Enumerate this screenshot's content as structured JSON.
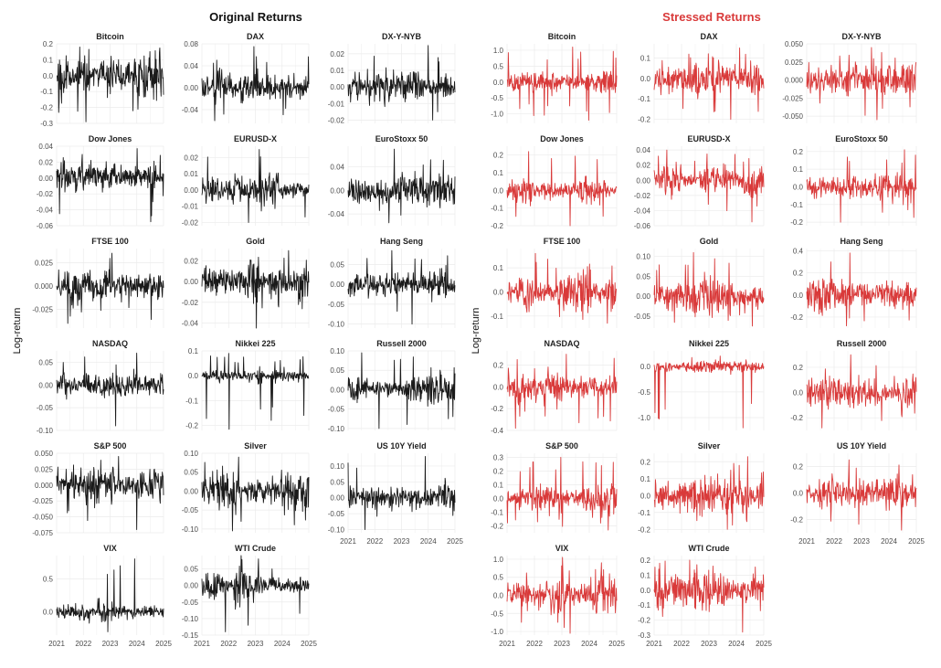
{
  "ylabel": "Log-return",
  "x_ticks": [
    "2021",
    "2022",
    "2023",
    "2024",
    "2025"
  ],
  "colors": {
    "original": "#1a1a1a",
    "stressed": "#d93a3a",
    "grid": "#ebebeb",
    "axis_text": "#4d4d4d",
    "title_text": "#222222"
  },
  "chart_data": [
    {
      "type": "line",
      "title": "Original Returns",
      "color_key": "original",
      "panels": [
        {
          "name": "Bitcoin",
          "yticks": [
            "0.2",
            "0.1",
            "0.0",
            "-0.1",
            "-0.2",
            "-0.3"
          ],
          "ylim": [
            -0.3,
            0.2
          ],
          "amp": 0.05,
          "up": 0.18,
          "down": -0.29
        },
        {
          "name": "DAX",
          "yticks": [
            "0.08",
            "0.04",
            "0.00",
            "-0.04"
          ],
          "ylim": [
            -0.065,
            0.08
          ],
          "amp": 0.011,
          "up": 0.075,
          "down": -0.06
        },
        {
          "name": "DX-Y-NYB",
          "yticks": [
            "0.02",
            "0.01",
            "0.00",
            "-0.01",
            "-0.02"
          ],
          "ylim": [
            -0.022,
            0.026
          ],
          "amp": 0.006,
          "up": 0.025,
          "down": -0.02
        },
        {
          "name": "Dow Jones",
          "yticks": [
            "0.04",
            "0.02",
            "0.00",
            "-0.02",
            "-0.04",
            "-0.06"
          ],
          "ylim": [
            -0.06,
            0.04
          ],
          "amp": 0.01,
          "up": 0.037,
          "down": -0.055
        },
        {
          "name": "EURUSD-X",
          "yticks": [
            "0.02",
            "0.01",
            "0.00",
            "-0.01",
            "-0.02"
          ],
          "ylim": [
            -0.022,
            0.027
          ],
          "amp": 0.005,
          "up": 0.025,
          "down": -0.02
        },
        {
          "name": "EuroStoxx 50",
          "yticks": [
            "0.04",
            "0.00",
            "-0.04"
          ],
          "ylim": [
            -0.06,
            0.075
          ],
          "amp": 0.011,
          "up": 0.07,
          "down": -0.055
        },
        {
          "name": "FTSE 100",
          "yticks": [
            "0.025",
            "0.000",
            "-0.025"
          ],
          "ylim": [
            -0.045,
            0.04
          ],
          "amp": 0.009,
          "up": 0.035,
          "down": -0.04
        },
        {
          "name": "Gold",
          "yticks": [
            "0.02",
            "0.00",
            "-0.02",
            "-0.04"
          ],
          "ylim": [
            -0.045,
            0.032
          ],
          "amp": 0.009,
          "up": 0.03,
          "down": -0.045
        },
        {
          "name": "Hang Seng",
          "yticks": [
            "0.05",
            "0.00",
            "-0.05",
            "-0.10"
          ],
          "ylim": [
            -0.11,
            0.09
          ],
          "amp": 0.017,
          "up": 0.085,
          "down": -0.1
        },
        {
          "name": "NASDAQ",
          "yticks": [
            "0.05",
            "0.00",
            "-0.05",
            "-0.10"
          ],
          "ylim": [
            -0.1,
            0.075
          ],
          "amp": 0.014,
          "up": 0.07,
          "down": -0.09
        },
        {
          "name": "Nikkei 225",
          "yticks": [
            "0.1",
            "0.0",
            "-0.1",
            "-0.2"
          ],
          "ylim": [
            -0.22,
            0.1
          ],
          "amp": 0.011,
          "up": 0.09,
          "down": -0.215
        },
        {
          "name": "Russell 2000",
          "yticks": [
            "0.10",
            "0.05",
            "0.00",
            "-0.05",
            "-0.10"
          ],
          "ylim": [
            -0.105,
            0.1
          ],
          "amp": 0.017,
          "up": 0.095,
          "down": -0.1
        },
        {
          "name": "S&P 500",
          "yticks": [
            "0.050",
            "0.025",
            "0.000",
            "-0.025",
            "-0.050",
            "-0.075"
          ],
          "ylim": [
            -0.075,
            0.05
          ],
          "amp": 0.012,
          "up": 0.045,
          "down": -0.07
        },
        {
          "name": "Silver",
          "yticks": [
            "0.10",
            "0.05",
            "0.00",
            "-0.05",
            "-0.10"
          ],
          "ylim": [
            -0.11,
            0.1
          ],
          "amp": 0.02,
          "up": 0.09,
          "down": -0.105
        },
        {
          "name": "US 10Y Yield",
          "yticks": [
            "0.10",
            "0.05",
            "0.00",
            "-0.05",
            "-0.10"
          ],
          "ylim": [
            -0.11,
            0.14
          ],
          "amp": 0.02,
          "up": 0.13,
          "down": -0.1
        },
        {
          "name": "VIX",
          "yticks": [
            "0.5",
            "0.0"
          ],
          "ylim": [
            -0.35,
            0.85
          ],
          "amp": 0.07,
          "up": 0.8,
          "down": -0.3
        },
        {
          "name": "WTI Crude",
          "yticks": [
            "0.05",
            "0.00",
            "-0.05",
            "-0.10",
            "-0.15"
          ],
          "ylim": [
            -0.15,
            0.09
          ],
          "amp": 0.025,
          "up": 0.08,
          "down": -0.14
        }
      ]
    },
    {
      "type": "line",
      "title": "Stressed Returns",
      "color_key": "stressed",
      "panels": [
        {
          "name": "Bitcoin",
          "yticks": [
            "1.0",
            "0.5",
            "0.0",
            "-0.5",
            "-1.0"
          ],
          "ylim": [
            -1.3,
            1.2
          ],
          "amp": 0.2,
          "up": 1.1,
          "down": -1.2
        },
        {
          "name": "DAX",
          "yticks": [
            "0.1",
            "0.0",
            "-0.1",
            "-0.2"
          ],
          "ylim": [
            -0.22,
            0.17
          ],
          "amp": 0.04,
          "up": 0.15,
          "down": -0.2
        },
        {
          "name": "DX-Y-NYB",
          "yticks": [
            "0.050",
            "0.025",
            "0.000",
            "-0.025",
            "-0.050"
          ],
          "ylim": [
            -0.06,
            0.05
          ],
          "amp": 0.012,
          "up": 0.045,
          "down": -0.055
        },
        {
          "name": "Dow Jones",
          "yticks": [
            "0.2",
            "0.1",
            "0.0",
            "-0.1",
            "-0.2"
          ],
          "ylim": [
            -0.2,
            0.25
          ],
          "amp": 0.04,
          "up": 0.22,
          "down": -0.2
        },
        {
          "name": "EURUSD-X",
          "yticks": [
            "0.04",
            "0.02",
            "0.00",
            "-0.02",
            "-0.04",
            "-0.06"
          ],
          "ylim": [
            -0.06,
            0.045
          ],
          "amp": 0.01,
          "up": 0.04,
          "down": -0.055
        },
        {
          "name": "EuroStoxx 50",
          "yticks": [
            "0.2",
            "0.1",
            "0.0",
            "-0.1",
            "-0.2"
          ],
          "ylim": [
            -0.22,
            0.23
          ],
          "amp": 0.04,
          "up": 0.21,
          "down": -0.2
        },
        {
          "name": "FTSE 100",
          "yticks": [
            "0.1",
            "0.0",
            "-0.1"
          ],
          "ylim": [
            -0.15,
            0.18
          ],
          "amp": 0.03,
          "up": 0.16,
          "down": -0.13
        },
        {
          "name": "Gold",
          "yticks": [
            "0.10",
            "0.05",
            "0.00",
            "-0.05"
          ],
          "ylim": [
            -0.08,
            0.12
          ],
          "amp": 0.02,
          "up": 0.11,
          "down": -0.075
        },
        {
          "name": "Hang Seng",
          "yticks": [
            "0.4",
            "0.2",
            "0.0",
            "-0.2"
          ],
          "ylim": [
            -0.3,
            0.42
          ],
          "amp": 0.07,
          "up": 0.38,
          "down": -0.28
        },
        {
          "name": "NASDAQ",
          "yticks": [
            "0.2",
            "0.0",
            "-0.2",
            "-0.4"
          ],
          "ylim": [
            -0.4,
            0.33
          ],
          "amp": 0.06,
          "up": 0.3,
          "down": -0.38
        },
        {
          "name": "Nikkei 225",
          "yticks": [
            "0.0",
            "-0.5",
            "-1.0"
          ],
          "ylim": [
            -1.25,
            0.3
          ],
          "amp": 0.05,
          "up": 0.2,
          "down": -1.2
        },
        {
          "name": "Russell 2000",
          "yticks": [
            "0.2",
            "0.0",
            "-0.2"
          ],
          "ylim": [
            -0.3,
            0.33
          ],
          "amp": 0.06,
          "up": 0.3,
          "down": -0.28
        },
        {
          "name": "S&P 500",
          "yticks": [
            "0.3",
            "0.2",
            "0.1",
            "0.0",
            "-0.1",
            "-0.2"
          ],
          "ylim": [
            -0.25,
            0.33
          ],
          "amp": 0.05,
          "up": 0.3,
          "down": -0.23
        },
        {
          "name": "Silver",
          "yticks": [
            "0.2",
            "0.1",
            "0.0",
            "-0.1",
            "-0.2"
          ],
          "ylim": [
            -0.22,
            0.25
          ],
          "amp": 0.05,
          "up": 0.23,
          "down": -0.2
        },
        {
          "name": "US 10Y Yield",
          "yticks": [
            "0.2",
            "0.0",
            "-0.2"
          ],
          "ylim": [
            -0.3,
            0.3
          ],
          "amp": 0.05,
          "up": 0.25,
          "down": -0.28
        },
        {
          "name": "VIX",
          "yticks": [
            "1.0",
            "0.5",
            "0.0",
            "-0.5",
            "-1.0"
          ],
          "ylim": [
            -1.1,
            1.1
          ],
          "amp": 0.2,
          "up": 1.05,
          "down": -1.05
        },
        {
          "name": "WTI Crude",
          "yticks": [
            "0.2",
            "0.1",
            "0.0",
            "-0.1",
            "-0.2",
            "-0.3"
          ],
          "ylim": [
            -0.3,
            0.23
          ],
          "amp": 0.05,
          "up": 0.2,
          "down": -0.28
        }
      ]
    }
  ]
}
